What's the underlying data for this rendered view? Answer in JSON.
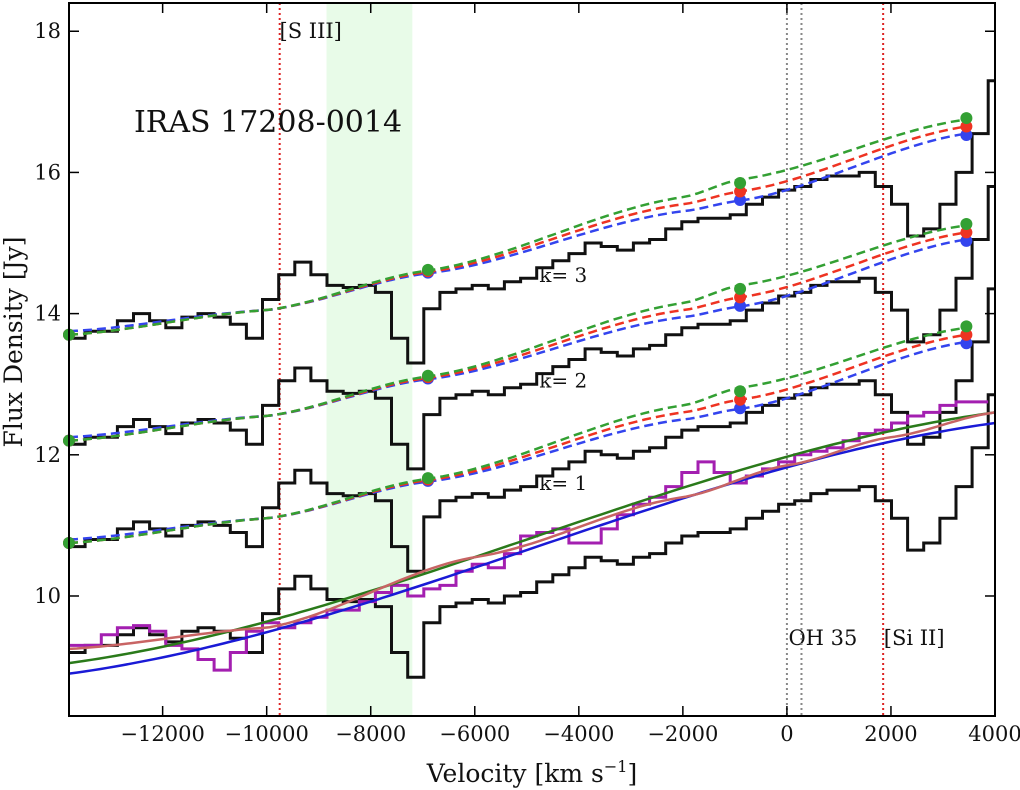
{
  "chart_data": {
    "type": "line",
    "title": "",
    "object_label": "IRAS 17208-0014",
    "xlabel_main": "Velocity [km s",
    "xlabel_sup": "−1",
    "xlabel_close": "]",
    "ylabel": "Flux Density [Jy]",
    "xlim": [
      -13800,
      4000
    ],
    "ylim": [
      8.3,
      18.4
    ],
    "xticks": [
      {
        "v": -12000,
        "label": "−12000"
      },
      {
        "v": -10000,
        "label": "−10000"
      },
      {
        "v": -8000,
        "label": "−8000"
      },
      {
        "v": -6000,
        "label": "−6000"
      },
      {
        "v": -4000,
        "label": "−4000"
      },
      {
        "v": -2000,
        "label": "−2000"
      },
      {
        "v": 0,
        "label": "0"
      },
      {
        "v": 2000,
        "label": "2000"
      },
      {
        "v": 4000,
        "label": "4000"
      }
    ],
    "yticks": [
      {
        "v": 10,
        "label": "10"
      },
      {
        "v": 12,
        "label": "12"
      },
      {
        "v": 14,
        "label": "14"
      },
      {
        "v": 16,
        "label": "16"
      },
      {
        "v": 18,
        "label": "18"
      }
    ],
    "grid": false,
    "shaded_region": {
      "x0": -8850,
      "x1": -7200,
      "color": "#e8fbe8"
    },
    "vlines": [
      {
        "x": -9750,
        "color": "#dd2222",
        "label": "[S III]",
        "label_pos": "top"
      },
      {
        "x": 1850,
        "color": "#dd2222",
        "label": "[Si II]",
        "label_pos": "bottom"
      },
      {
        "x": 0,
        "color": "#888888",
        "label": "OH 35",
        "label_pos": "bottom"
      },
      {
        "x": 280,
        "color": "#888888",
        "label": "",
        "label_pos": "bottom"
      }
    ],
    "spectrum_steps": {
      "x_start": -13800,
      "dx": 310,
      "base_values": [
        9.2,
        9.3,
        9.3,
        9.45,
        9.55,
        9.45,
        9.35,
        9.5,
        9.55,
        9.5,
        9.4,
        9.2,
        9.75,
        10.1,
        10.28,
        10.1,
        9.95,
        9.92,
        9.95,
        9.85,
        9.2,
        8.85,
        9.62,
        9.85,
        9.9,
        9.95,
        9.9,
        10.0,
        10.05,
        10.2,
        10.3,
        10.4,
        10.55,
        10.5,
        10.45,
        10.55,
        10.6,
        10.75,
        10.85,
        10.9,
        10.9,
        10.95,
        11.1,
        11.2,
        11.3,
        11.35,
        11.45,
        11.5,
        11.5,
        11.55,
        11.35,
        11.1,
        10.65,
        10.75,
        11.1,
        11.55,
        12.1,
        12.85,
        13.75,
        13.95,
        12.75,
        12.45,
        12.2,
        11.8,
        11.75,
        12.25,
        12.45,
        12.5
      ],
      "offsets": [
        0,
        1.5,
        2.95,
        4.45
      ],
      "color": "#111111"
    },
    "magenta_steps": {
      "x_start": -13800,
      "dx": 310,
      "values": [
        9.3,
        9.3,
        9.45,
        9.55,
        9.58,
        9.5,
        9.3,
        9.25,
        9.1,
        8.95,
        9.2,
        9.5,
        9.62,
        9.55,
        9.62,
        9.7,
        9.8,
        9.8,
        9.92,
        10.05,
        10.15,
        10.0,
        10.1,
        10.15,
        10.35,
        10.45,
        10.4,
        10.6,
        10.85,
        10.9,
        10.95,
        10.75,
        10.75,
        10.95,
        11.15,
        11.3,
        11.4,
        11.55,
        11.75,
        11.9,
        11.75,
        11.6,
        11.7,
        11.8,
        11.9,
        12.0,
        12.05,
        12.1,
        12.2,
        12.3,
        12.35,
        12.45,
        12.55,
        12.6,
        12.7,
        12.75,
        12.75
      ],
      "range": [
        -13800,
        4000
      ],
      "color": "#a31fb0"
    },
    "baselines": [
      {
        "name": "",
        "color": "#1a1ad6",
        "points": [
          [
            -13800,
            8.9
          ],
          [
            4000,
            12.45
          ]
        ]
      },
      {
        "name": "",
        "color": "#2a7a1a",
        "points": [
          [
            -13800,
            9.05
          ],
          [
            4000,
            12.6
          ]
        ]
      },
      {
        "name": "",
        "color": "#c86464",
        "points": [
          [
            -13800,
            9.25
          ],
          [
            -10000,
            9.55
          ],
          [
            -6000,
            10.55
          ],
          [
            -2000,
            11.4
          ],
          [
            0,
            11.85
          ],
          [
            2000,
            12.25
          ],
          [
            4000,
            12.6
          ]
        ]
      }
    ],
    "polynomial_fits": [
      {
        "label": "k= 3",
        "label_x": -4300,
        "label_y": 14.45,
        "offset": 4.45
      },
      {
        "label": "k= 2",
        "label_x": -4300,
        "label_y": 12.95,
        "offset": 2.95
      },
      {
        "label": "k= 1",
        "label_x": -4300,
        "label_y": 11.5,
        "offset": 1.5
      }
    ],
    "fit_curves_base": [
      {
        "color": "#3344ee",
        "points": [
          [
            -13800,
            9.3
          ],
          [
            -10000,
            9.6
          ],
          [
            -6900,
            10.12
          ],
          [
            -2000,
            11.0
          ],
          [
            -900,
            11.15
          ],
          [
            3450,
            12.1
          ]
        ]
      },
      {
        "color": "#ee3322",
        "points": [
          [
            -13800,
            9.25
          ],
          [
            -10000,
            9.6
          ],
          [
            -6900,
            10.14
          ],
          [
            -2000,
            11.1
          ],
          [
            -900,
            11.28
          ],
          [
            3450,
            12.2
          ]
        ]
      },
      {
        "color": "#33a033",
        "points": [
          [
            -13800,
            9.25
          ],
          [
            -10000,
            9.6
          ],
          [
            -6900,
            10.16
          ],
          [
            -2000,
            11.2
          ],
          [
            -900,
            11.45
          ],
          [
            3450,
            12.3
          ]
        ]
      }
    ],
    "anchor_points_base": [
      {
        "x": -13800,
        "y": 9.25
      },
      {
        "x": -6900,
        "y": 10.15
      },
      {
        "x": -900,
        "y": 11.28
      },
      {
        "x": 3450,
        "y": 12.2
      }
    ]
  }
}
